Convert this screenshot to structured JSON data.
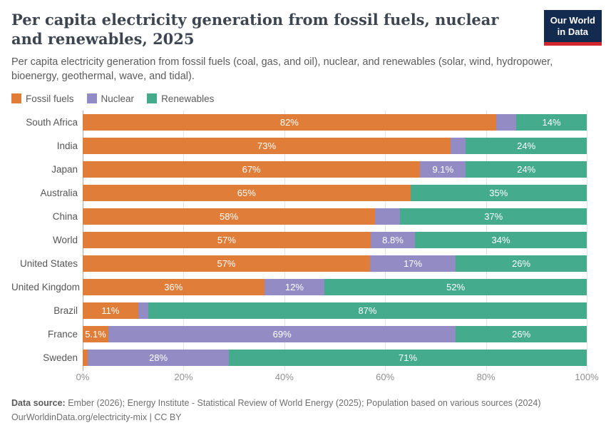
{
  "header": {
    "title": "Per capita electricity generation from fossil fuels, nuclear and renewables, 2025",
    "subtitle": "Per capita electricity generation from fossil fuels (coal, gas, and oil), nuclear, and renewables (solar, wind, hydropower, bioenergy, geothermal, wave, and tidal).",
    "logo": {
      "line1": "Our World",
      "line2": "in Data"
    }
  },
  "colors": {
    "fossil_fuels": "#E07E39",
    "nuclear": "#938CC4",
    "renewables": "#45AB8D",
    "logo_bg": "#122B4E",
    "logo_stripe": "#D2262C"
  },
  "chart_data": {
    "type": "bar",
    "orientation": "horizontal",
    "stacked": true,
    "unit": "%",
    "xlim": [
      0,
      100
    ],
    "grid": true,
    "legend_position": "top",
    "x_ticks": [
      "0%",
      "20%",
      "40%",
      "60%",
      "80%",
      "100%"
    ],
    "categories": [
      "South Africa",
      "India",
      "Japan",
      "Australia",
      "China",
      "World",
      "United States",
      "United Kingdom",
      "Brazil",
      "France",
      "Sweden"
    ],
    "series": [
      {
        "name": "Fossil fuels",
        "color": "#E07E39",
        "values": [
          82,
          73,
          67,
          65,
          58,
          57,
          57,
          36,
          11,
          5.1,
          1
        ],
        "labels": [
          "82%",
          "73%",
          "67%",
          "65%",
          "58%",
          "57%",
          "57%",
          "36%",
          "11%",
          "5.1%",
          ""
        ]
      },
      {
        "name": "Nuclear",
        "color": "#938CC4",
        "values": [
          4,
          3,
          9.1,
          0,
          5,
          8.8,
          17,
          12,
          2,
          69,
          28
        ],
        "labels": [
          "",
          "",
          "9.1%",
          "",
          "",
          "8.8%",
          "17%",
          "12%",
          "",
          "69%",
          "28%"
        ]
      },
      {
        "name": "Renewables",
        "color": "#45AB8D",
        "values": [
          14,
          24,
          24,
          35,
          37,
          34,
          26,
          52,
          87,
          26,
          71
        ],
        "labels": [
          "14%",
          "24%",
          "24%",
          "35%",
          "37%",
          "34%",
          "26%",
          "52%",
          "87%",
          "26%",
          "71%"
        ]
      }
    ]
  },
  "footer": {
    "data_source_label": "Data source:",
    "data_source_text": " Ember (2026); Energy Institute - Statistical Review of World Energy (2025); Population based on various sources (2024)",
    "link": "OurWorldinData.org/electricity-mix",
    "separator": " | ",
    "license": "CC BY"
  }
}
